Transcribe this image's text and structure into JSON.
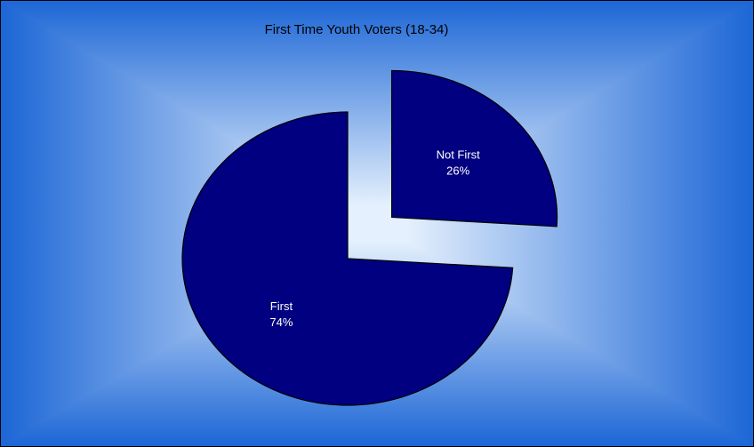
{
  "chart_data": {
    "type": "pie",
    "title": "First Time Youth Voters (18-34)",
    "slices": [
      {
        "label": "Not First",
        "value": 26,
        "display": "26%",
        "exploded": true
      },
      {
        "label": "First",
        "value": 74,
        "display": "74%",
        "exploded": true
      }
    ],
    "colors": {
      "slice_fill": "#000080",
      "slice_stroke": "#000000",
      "label_text": "#ffffff",
      "title_text": "#000000",
      "background_center": "#e4f0fd",
      "background_edge": "#1c66d6"
    },
    "legend": "none"
  }
}
